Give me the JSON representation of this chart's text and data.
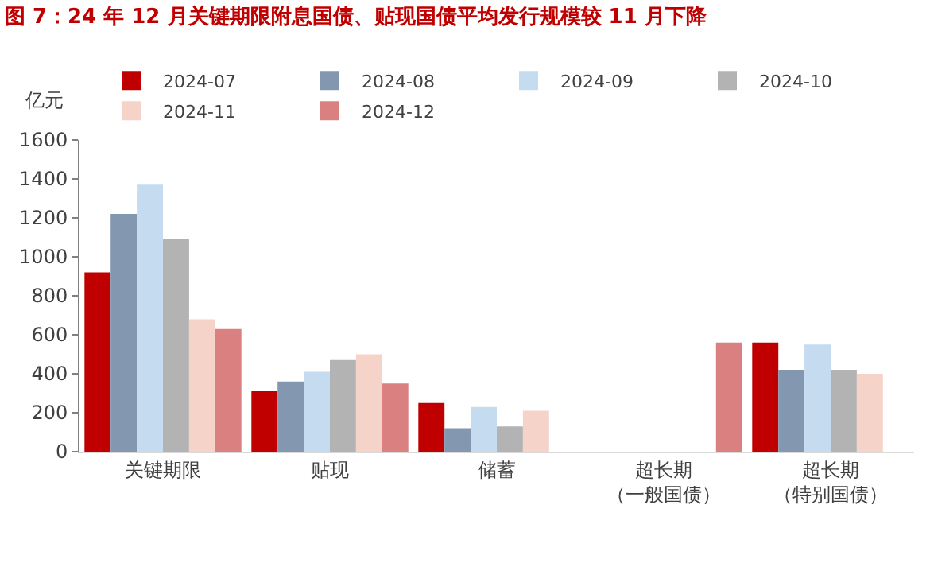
{
  "chart_data": {
    "type": "bar",
    "title": "图 7：24 年 12 月关键期限附息国债、贴现国债平均发行规模较 11 月下降",
    "ylabel": "亿元",
    "categories": [
      "关键期限",
      "贴现",
      "储蓄",
      "超长期（一般国债）",
      "超长期（特别国债）"
    ],
    "series": [
      {
        "name": "2024-07",
        "color": "#c00000",
        "values": [
          920,
          310,
          250,
          null,
          560
        ]
      },
      {
        "name": "2024-08",
        "color": "#8497b0",
        "values": [
          1220,
          360,
          120,
          null,
          420
        ]
      },
      {
        "name": "2024-09",
        "color": "#c5dcf0",
        "values": [
          1370,
          410,
          230,
          null,
          550
        ]
      },
      {
        "name": "2024-10",
        "color": "#b3b3b3",
        "values": [
          1090,
          470,
          130,
          null,
          420
        ]
      },
      {
        "name": "2024-11",
        "color": "#f5d3c8",
        "values": [
          680,
          500,
          210,
          null,
          400
        ]
      },
      {
        "name": "2024-12",
        "color": "#da8080",
        "values": [
          630,
          350,
          null,
          560,
          null
        ]
      }
    ],
    "ylim": [
      0,
      1600
    ],
    "yticks": [
      0,
      200,
      400,
      600,
      800,
      1000,
      1200,
      1400,
      1600
    ],
    "legend": "top"
  }
}
